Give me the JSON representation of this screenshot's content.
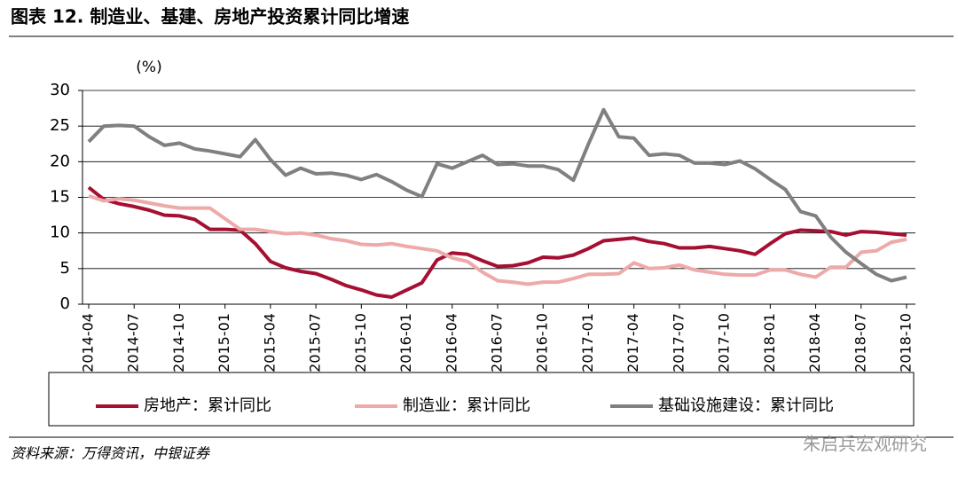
{
  "header": {
    "title": "图表 12. 制造业、基建、房地产投资累计同比增速"
  },
  "chart_data": {
    "type": "line",
    "y_label": "(%)",
    "categories": [
      "2014-04",
      null,
      null,
      "2014-07",
      null,
      null,
      "2014-10",
      null,
      null,
      "2015-01",
      null,
      null,
      "2015-04",
      null,
      null,
      "2015-07",
      null,
      null,
      "2015-10",
      null,
      null,
      "2016-01",
      null,
      null,
      "2016-04",
      null,
      null,
      "2016-07",
      null,
      null,
      "2016-10",
      null,
      null,
      "2017-01",
      null,
      null,
      "2017-04",
      null,
      null,
      "2017-07",
      null,
      null,
      "2017-10",
      null,
      null,
      "2018-01",
      null,
      null,
      "2018-04",
      null,
      null,
      "2018-07",
      null,
      null,
      "2018-10"
    ],
    "series": [
      {
        "name": "房地产：累计同比",
        "color": "#a50f32",
        "values": [
          16.4,
          14.7,
          14.1,
          13.7,
          13.2,
          12.5,
          12.4,
          11.9,
          10.5,
          10.5,
          10.4,
          8.5,
          6.0,
          5.1,
          4.6,
          4.3,
          3.5,
          2.6,
          2.0,
          1.3,
          1.0,
          2.0,
          3.0,
          6.2,
          7.2,
          7.0,
          6.1,
          5.3,
          5.4,
          5.8,
          6.6,
          6.5,
          6.9,
          7.8,
          8.9,
          9.1,
          9.3,
          8.8,
          8.5,
          7.9,
          7.9,
          8.1,
          7.8,
          7.5,
          7.0,
          8.5,
          9.9,
          10.4,
          10.3,
          10.2,
          9.7,
          10.2,
          10.1,
          9.9,
          9.7
        ]
      },
      {
        "name": "制造业：累计同比",
        "color": "#eea9a9",
        "values": [
          15.2,
          14.5,
          14.8,
          14.6,
          14.2,
          13.8,
          13.5,
          13.5,
          13.5,
          12.0,
          10.5,
          10.5,
          10.2,
          9.9,
          10.0,
          9.7,
          9.2,
          8.9,
          8.4,
          8.3,
          8.5,
          8.1,
          7.8,
          7.5,
          6.5,
          6.0,
          4.5,
          3.3,
          3.1,
          2.8,
          3.1,
          3.1,
          3.6,
          4.2,
          4.2,
          4.3,
          5.8,
          5.0,
          5.1,
          5.5,
          4.8,
          4.5,
          4.2,
          4.1,
          4.1,
          4.8,
          4.8,
          4.2,
          3.8,
          5.2,
          5.2,
          7.3,
          7.5,
          8.7,
          9.1
        ]
      },
      {
        "name": "基础设施建设：累计同比",
        "color": "#808080",
        "values": [
          22.8,
          25.0,
          25.1,
          25.0,
          23.5,
          22.3,
          22.6,
          21.8,
          21.5,
          21.1,
          20.7,
          23.1,
          20.3,
          18.1,
          19.1,
          18.3,
          18.4,
          18.1,
          17.5,
          18.2,
          17.2,
          16.0,
          15.1,
          19.7,
          19.1,
          20.0,
          20.9,
          19.6,
          19.7,
          19.4,
          19.4,
          18.9,
          17.4,
          22.5,
          27.3,
          23.5,
          23.3,
          20.9,
          21.1,
          20.9,
          19.8,
          19.8,
          19.6,
          20.1,
          19.0,
          17.5,
          16.1,
          13.0,
          12.4,
          9.4,
          7.3,
          5.7,
          4.2,
          3.3,
          3.8
        ]
      }
    ],
    "ylim": [
      0,
      30
    ],
    "yticks": [
      0,
      5,
      10,
      15,
      20,
      25,
      30
    ],
    "grid": true
  },
  "footer": {
    "source": "资料来源：万得资讯，中银证券",
    "watermark": "朱启兵宏观研究"
  }
}
